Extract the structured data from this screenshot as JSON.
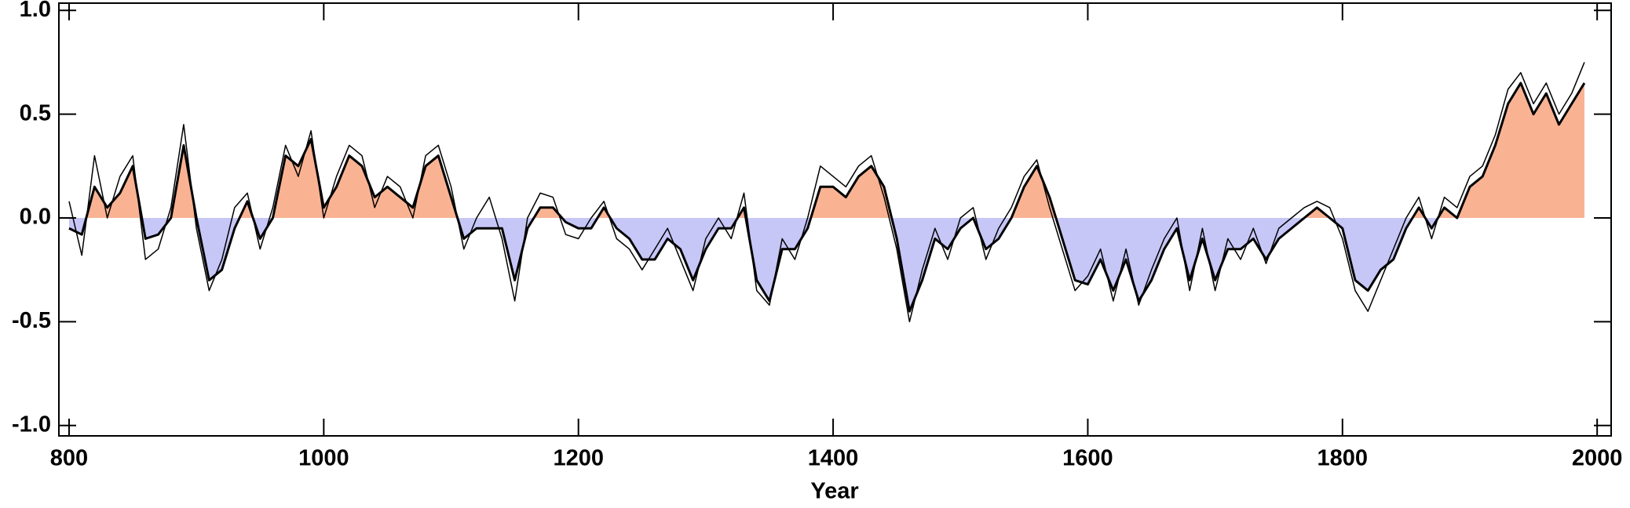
{
  "chart_data": {
    "type": "line",
    "x_label": "Year",
    "xlim": [
      792,
      2011
    ],
    "ylim": [
      -1.05,
      1.035
    ],
    "xticks": [
      800,
      1000,
      1200,
      1400,
      1600,
      1800,
      2000
    ],
    "yticks": [
      {
        "value": 1,
        "label": "1.0"
      },
      0.5,
      {
        "value": 0,
        "label": "0.0"
      },
      -0.5,
      {
        "value": -1,
        "label": "-1.0"
      }
    ],
    "fill_above_color": "#f9b393",
    "fill_below_color": "#c6c6f7",
    "x": [
      800,
      810,
      820,
      830,
      840,
      850,
      860,
      870,
      880,
      890,
      900,
      910,
      920,
      930,
      940,
      950,
      960,
      970,
      980,
      990,
      1000,
      1010,
      1020,
      1030,
      1040,
      1050,
      1060,
      1070,
      1080,
      1090,
      1100,
      1110,
      1120,
      1130,
      1140,
      1150,
      1160,
      1170,
      1180,
      1190,
      1200,
      1210,
      1220,
      1230,
      1240,
      1250,
      1260,
      1270,
      1280,
      1290,
      1300,
      1310,
      1320,
      1330,
      1340,
      1350,
      1360,
      1370,
      1380,
      1390,
      1400,
      1410,
      1420,
      1430,
      1440,
      1450,
      1460,
      1470,
      1480,
      1490,
      1500,
      1510,
      1520,
      1530,
      1540,
      1550,
      1560,
      1570,
      1580,
      1590,
      1600,
      1610,
      1620,
      1630,
      1640,
      1650,
      1660,
      1670,
      1680,
      1690,
      1700,
      1710,
      1720,
      1730,
      1740,
      1750,
      1760,
      1770,
      1780,
      1790,
      1800,
      1810,
      1820,
      1830,
      1840,
      1850,
      1860,
      1870,
      1880,
      1890,
      1900,
      1910,
      1920,
      1930,
      1940,
      1950,
      1960,
      1970,
      1980,
      1990
    ],
    "series": [
      {
        "color": "#000000",
        "fill": true,
        "values": [
          -0.05,
          -0.08,
          0.15,
          0.05,
          0.12,
          0.25,
          -0.1,
          -0.08,
          0.0,
          0.35,
          0.0,
          -0.3,
          -0.25,
          -0.05,
          0.08,
          -0.1,
          0.0,
          0.3,
          0.25,
          0.38,
          0.05,
          0.15,
          0.3,
          0.25,
          0.1,
          0.15,
          0.1,
          0.05,
          0.25,
          0.3,
          0.1,
          -0.1,
          -0.05,
          -0.05,
          -0.05,
          -0.3,
          -0.05,
          0.05,
          0.05,
          -0.02,
          -0.05,
          -0.05,
          0.05,
          -0.05,
          -0.1,
          -0.2,
          -0.2,
          -0.1,
          -0.15,
          -0.3,
          -0.15,
          -0.05,
          -0.05,
          0.05,
          -0.3,
          -0.4,
          -0.15,
          -0.15,
          -0.05,
          0.15,
          0.15,
          0.1,
          0.2,
          0.25,
          0.15,
          -0.1,
          -0.45,
          -0.3,
          -0.1,
          -0.15,
          -0.05,
          0.0,
          -0.15,
          -0.1,
          0.0,
          0.15,
          0.25,
          0.1,
          -0.1,
          -0.3,
          -0.32,
          -0.2,
          -0.35,
          -0.2,
          -0.4,
          -0.3,
          -0.15,
          -0.05,
          -0.3,
          -0.1,
          -0.3,
          -0.15,
          -0.15,
          -0.1,
          -0.2,
          -0.1,
          -0.05,
          0.0,
          0.05,
          0.0,
          -0.05,
          -0.3,
          -0.35,
          -0.25,
          -0.2,
          -0.05,
          0.05,
          -0.05,
          0.05,
          0.0,
          0.15,
          0.2,
          0.35,
          0.55,
          0.65,
          0.5,
          0.6,
          0.45,
          0.55,
          0.65
        ]
      },
      {
        "color": "#000000",
        "values": [
          0.08,
          -0.18,
          0.3,
          0.0,
          0.2,
          0.3,
          -0.2,
          -0.15,
          0.05,
          0.45,
          -0.05,
          -0.35,
          -0.2,
          0.05,
          0.12,
          -0.15,
          0.05,
          0.35,
          0.2,
          0.42,
          0.0,
          0.2,
          0.35,
          0.3,
          0.05,
          0.2,
          0.15,
          0.0,
          0.3,
          0.35,
          0.15,
          -0.15,
          0.0,
          0.1,
          -0.1,
          -0.4,
          0.0,
          0.12,
          0.1,
          -0.08,
          -0.1,
          0.0,
          0.08,
          -0.1,
          -0.15,
          -0.25,
          -0.15,
          -0.05,
          -0.2,
          -0.35,
          -0.1,
          0.0,
          -0.1,
          0.12,
          -0.35,
          -0.42,
          -0.1,
          -0.2,
          0.0,
          0.25,
          0.2,
          0.15,
          0.25,
          0.3,
          0.1,
          -0.15,
          -0.5,
          -0.25,
          -0.05,
          -0.2,
          0.0,
          0.05,
          -0.2,
          -0.05,
          0.05,
          0.2,
          0.28,
          0.05,
          -0.15,
          -0.35,
          -0.28,
          -0.15,
          -0.4,
          -0.15,
          -0.42,
          -0.25,
          -0.1,
          0.0,
          -0.35,
          -0.05,
          -0.35,
          -0.1,
          -0.2,
          -0.05,
          -0.22,
          -0.05,
          0.0,
          0.05,
          0.08,
          0.05,
          -0.1,
          -0.35,
          -0.45,
          -0.3,
          -0.15,
          0.0,
          0.1,
          -0.1,
          0.1,
          0.05,
          0.2,
          0.25,
          0.4,
          0.62,
          0.7,
          0.55,
          0.65,
          0.5,
          0.6,
          0.75
        ]
      }
    ]
  }
}
